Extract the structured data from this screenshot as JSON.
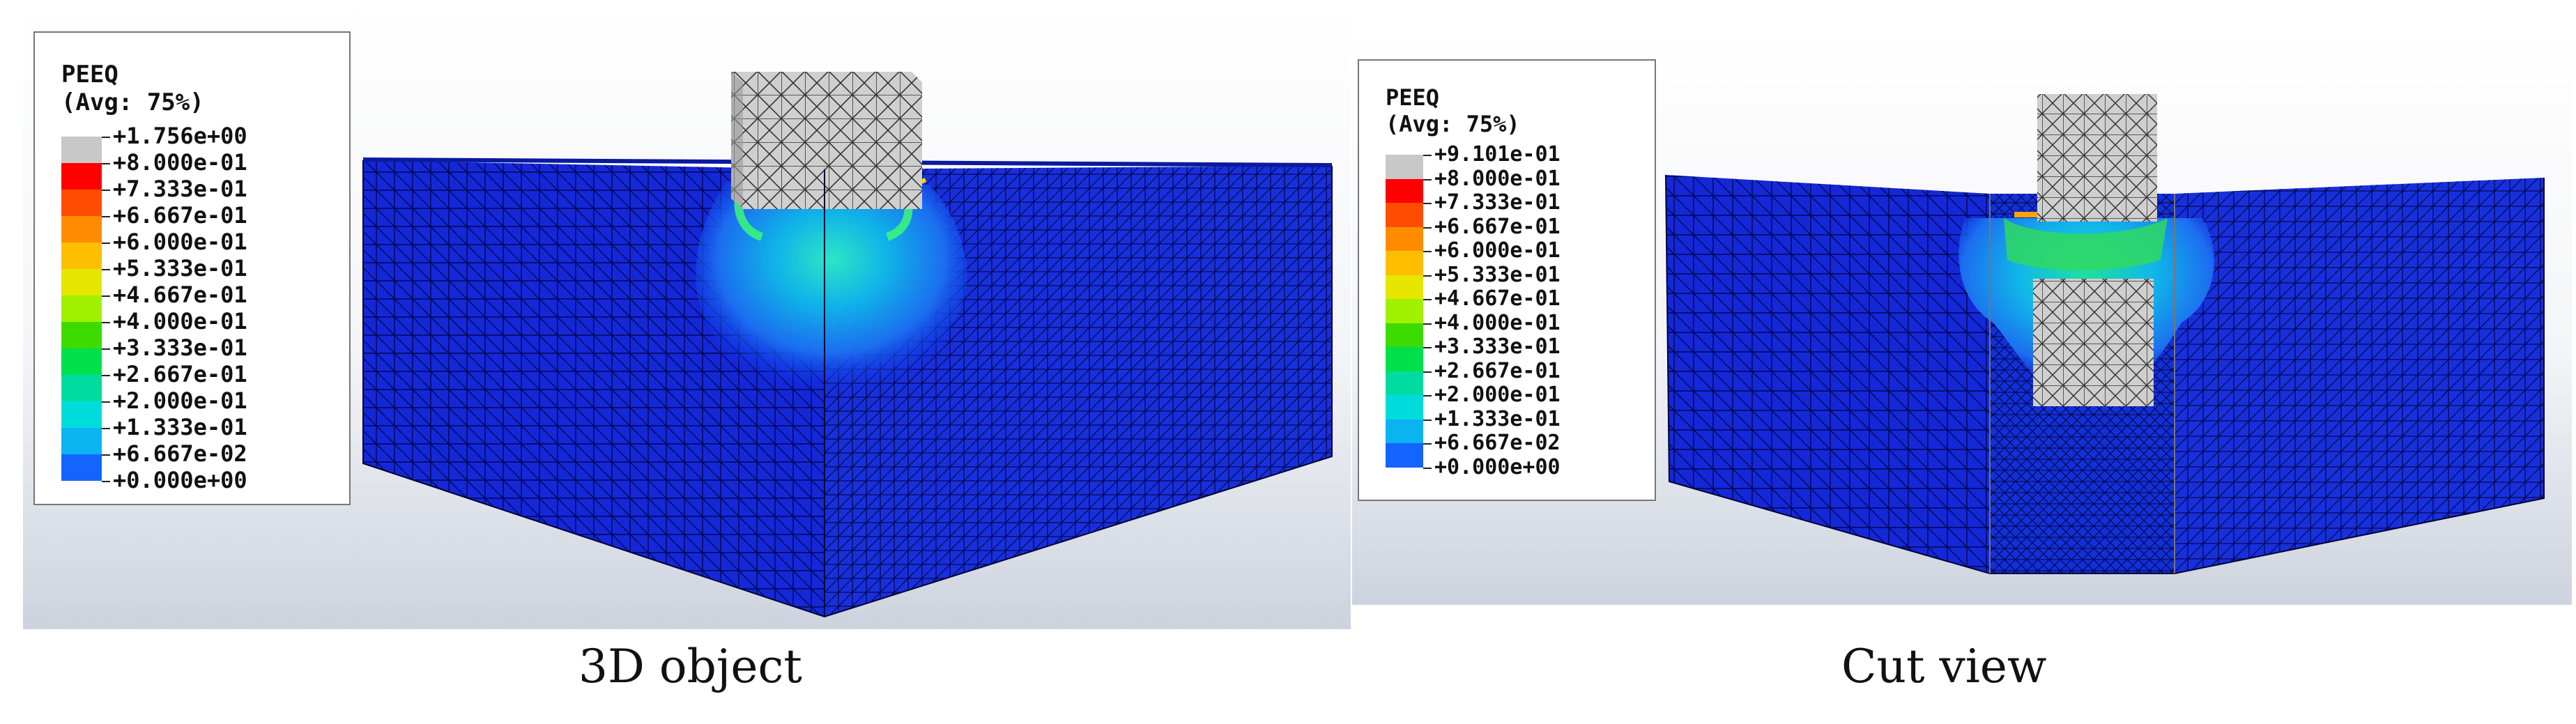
{
  "panels": [
    {
      "legend": {
        "title": "PEEQ",
        "subtitle": "(Avg: 75%)",
        "values": [
          "+1.756e+00",
          "+8.000e-01",
          "+7.333e-01",
          "+6.667e-01",
          "+6.000e-01",
          "+5.333e-01",
          "+4.667e-01",
          "+4.000e-01",
          "+3.333e-01",
          "+2.667e-01",
          "+2.000e-01",
          "+1.333e-01",
          "+6.667e-02",
          "+0.000e+00"
        ],
        "colors": [
          "#c8c8c8",
          "#ff0000",
          "#ff4d00",
          "#ff8c00",
          "#ffbf00",
          "#e6e600",
          "#a0f000",
          "#3cdc00",
          "#00e04a",
          "#00dca0",
          "#00dcdc",
          "#0ab4f0",
          "#1464ff",
          "#0000ff"
        ]
      },
      "caption": "3D object"
    },
    {
      "legend": {
        "title": "PEEQ",
        "subtitle": "(Avg: 75%)",
        "values": [
          "+9.101e-01",
          "+8.000e-01",
          "+7.333e-01",
          "+6.667e-01",
          "+6.000e-01",
          "+5.333e-01",
          "+4.667e-01",
          "+4.000e-01",
          "+3.333e-01",
          "+2.667e-01",
          "+2.000e-01",
          "+1.333e-01",
          "+6.667e-02",
          "+0.000e+00"
        ],
        "colors": [
          "#c8c8c8",
          "#ff0000",
          "#ff4d00",
          "#ff8c00",
          "#ffbf00",
          "#e6e600",
          "#a0f000",
          "#3cdc00",
          "#00e04a",
          "#00dca0",
          "#00dcdc",
          "#0ab4f0",
          "#1464ff",
          "#0000ff"
        ]
      },
      "caption": "Cut view"
    }
  ]
}
